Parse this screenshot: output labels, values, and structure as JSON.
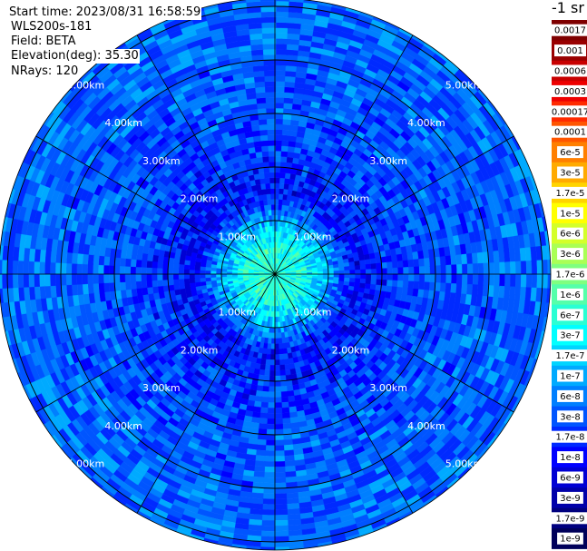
{
  "header": {
    "start_time": "Start time: 2023/08/31 16:58:59",
    "instrument": "WLS200s-181",
    "field": "Field: BETA",
    "elevation": "Elevation(deg): 35.30",
    "nrays": "NRays: 120"
  },
  "units": "-1 sr",
  "chart_data": {
    "type": "heatmap",
    "title": "",
    "projection": "polar",
    "field": "BETA",
    "elevation_deg": 35.3,
    "n_rays": 120,
    "range_rings_km": [
      1,
      2,
      3,
      4,
      5
    ],
    "ring_labels": [
      "1.00km",
      "2.00km",
      "3.00km",
      "4.00km",
      "5.00km"
    ],
    "spokes_deg": [
      0,
      30,
      60,
      90,
      120,
      150,
      180,
      210,
      240,
      270,
      300,
      330
    ],
    "max_range_km": 6.6,
    "value_profile": [
      {
        "range_km": 0.5,
        "value": 5e-07
      },
      {
        "range_km": 1.0,
        "value": 1e-07
      },
      {
        "range_km": 1.5,
        "value": 1e-08
      },
      {
        "range_km": 2.0,
        "value": 1.7e-08
      },
      {
        "range_km": 3.0,
        "value": 3e-08
      },
      {
        "range_km": 5.0,
        "value": 4e-08
      },
      {
        "range_km": 6.5,
        "value": 5e-08
      }
    ],
    "colorbar": {
      "ticks": [
        "0.0017",
        "0.001",
        "0.0006",
        "0.0003",
        "0.00017",
        "0.0001",
        "6e-5",
        "3e-5",
        "1.7e-5",
        "1e-5",
        "6e-6",
        "3e-6",
        "1.7e-6",
        "1e-6",
        "6e-7",
        "3e-7",
        "1.7e-7",
        "1e-7",
        "6e-8",
        "3e-8",
        "1.7e-8",
        "1e-8",
        "6e-9",
        "3e-9",
        "1.7e-9",
        "1e-9"
      ],
      "colors": [
        "#7f0000",
        "#990000",
        "#c80000",
        "#ee0000",
        "#ff2a00",
        "#ff5500",
        "#ff7f00",
        "#ffaa00",
        "#ffd400",
        "#ffff00",
        "#d4ff2a",
        "#aaff55",
        "#7fff7f",
        "#55ffaa",
        "#2affd4",
        "#00ffff",
        "#00d4ff",
        "#00aaff",
        "#007fff",
        "#0055ff",
        "#002aff",
        "#0000ff",
        "#0000d4",
        "#0000aa",
        "#00007f",
        "#00005a"
      ]
    }
  }
}
